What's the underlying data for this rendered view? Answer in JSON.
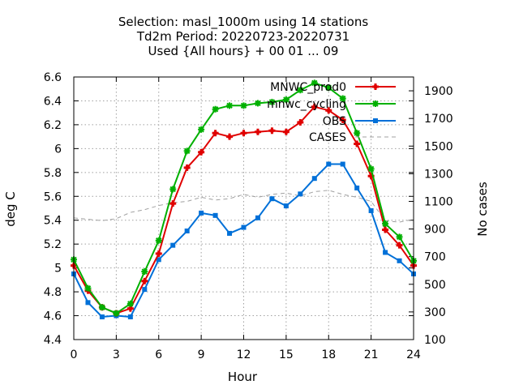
{
  "chart_data": {
    "type": "line",
    "title_lines": [
      "Selection: masl_1000m using    14 stations",
      "Td2m   Period: 20220723-20220731",
      "Used {All hours} + 00 01 ... 09"
    ],
    "xlabel": "Hour",
    "ylabel": "deg C",
    "y2label": "No cases",
    "xlim": [
      0,
      24
    ],
    "ylim": [
      4.4,
      6.6
    ],
    "y2lim": [
      100,
      2000
    ],
    "xticks": [
      0,
      3,
      6,
      9,
      12,
      15,
      18,
      21,
      24
    ],
    "yticks": [
      4.4,
      4.6,
      4.8,
      5,
      5.2,
      5.4,
      5.6,
      5.8,
      6,
      6.2,
      6.4,
      6.6
    ],
    "ytick_labels": [
      "4.4",
      "4.6",
      "4.8",
      "5",
      "5.2",
      "5.4",
      "5.6",
      "5.8",
      "6",
      "6.2",
      "6.4",
      "6.6"
    ],
    "y2ticks": [
      100,
      300,
      500,
      700,
      900,
      1100,
      1300,
      1500,
      1700,
      1900
    ],
    "grid": true,
    "legend_position": "top-right",
    "x": [
      0,
      1,
      2,
      3,
      4,
      5,
      6,
      7,
      8,
      9,
      10,
      11,
      12,
      13,
      14,
      15,
      16,
      17,
      18,
      19,
      20,
      21,
      22,
      23,
      24
    ],
    "series": [
      {
        "name": "MNWC_prod0",
        "color": "#e00000",
        "axis": "y1",
        "marker": "plus",
        "values": [
          5.02,
          4.81,
          4.67,
          4.62,
          4.66,
          4.89,
          5.12,
          5.54,
          5.84,
          5.97,
          6.13,
          6.1,
          6.13,
          6.14,
          6.15,
          6.14,
          6.22,
          6.35,
          6.32,
          6.24,
          6.04,
          5.77,
          5.32,
          5.19,
          5.02
        ]
      },
      {
        "name": "mnwc_cycling",
        "color": "#00b000",
        "axis": "y1",
        "marker": "star",
        "values": [
          5.07,
          4.83,
          4.67,
          4.62,
          4.7,
          4.97,
          5.23,
          5.66,
          5.98,
          6.16,
          6.33,
          6.36,
          6.36,
          6.38,
          6.39,
          6.41,
          6.49,
          6.55,
          6.51,
          6.42,
          6.13,
          5.83,
          5.37,
          5.26,
          5.06
        ]
      },
      {
        "name": "OBS",
        "color": "#0070d8",
        "axis": "y1",
        "marker": "box",
        "values": [
          4.95,
          4.71,
          4.59,
          4.6,
          4.59,
          4.82,
          5.07,
          5.19,
          5.31,
          5.46,
          5.44,
          5.29,
          5.34,
          5.42,
          5.58,
          5.52,
          5.62,
          5.75,
          5.87,
          5.87,
          5.67,
          5.48,
          5.13,
          5.06,
          4.95
        ]
      },
      {
        "name": "CASES",
        "color": "#a0a0a0",
        "axis": "y2",
        "marker": "none",
        "dashed": true,
        "values": [
          980,
          970,
          960,
          975,
          1020,
          1040,
          1070,
          1090,
          1100,
          1130,
          1110,
          1120,
          1150,
          1130,
          1150,
          1160,
          1140,
          1170,
          1180,
          1150,
          1130,
          1100,
          960,
          950,
          970
        ]
      }
    ]
  }
}
